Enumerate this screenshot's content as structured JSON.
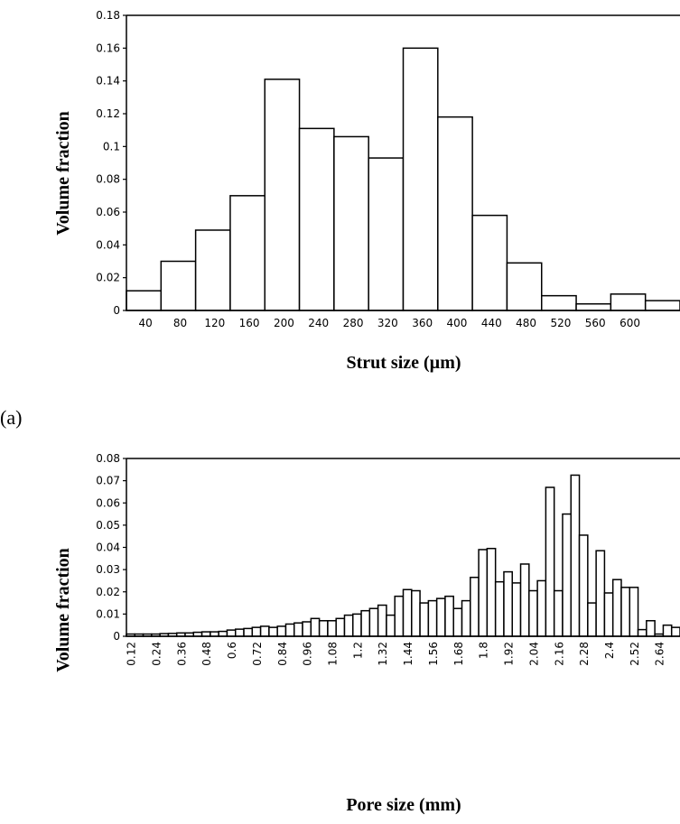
{
  "panel_labels": {
    "a": "(a)",
    "b": ""
  },
  "chart_data": [
    {
      "type": "bar",
      "title": "",
      "xlabel": "Strut size (µm)",
      "ylabel": "Volume fraction",
      "ylim": [
        0,
        0.18
      ],
      "yticks": [
        "0",
        "0.02",
        "0.04",
        "0.06",
        "0.08",
        "0.1",
        "0.12",
        "0.14",
        "0.16",
        "0.18"
      ],
      "xtick_labels": [
        "40",
        "80",
        "120",
        "160",
        "200",
        "240",
        "280",
        "320",
        "360",
        "400",
        "440",
        "480",
        "520",
        "560",
        "600"
      ],
      "bin_width": 40,
      "categories": [
        "0-40",
        "40-80",
        "80-120",
        "120-160",
        "160-200",
        "200-240",
        "240-280",
        "280-320",
        "320-360",
        "360-400",
        "400-440",
        "440-480",
        "480-520",
        "520-560",
        "560-600",
        "600-640"
      ],
      "values": [
        0.012,
        0.03,
        0.049,
        0.07,
        0.141,
        0.111,
        0.106,
        0.093,
        0.16,
        0.118,
        0.058,
        0.029,
        0.009,
        0.004,
        0.01,
        0.006
      ],
      "grid": false,
      "legend": "none"
    },
    {
      "type": "bar",
      "title": "",
      "xlabel": "Pore size (mm)",
      "ylabel": "Volume fraction",
      "ylim": [
        0,
        0.08
      ],
      "yticks": [
        "0",
        "0.01",
        "0.02",
        "0.03",
        "0.04",
        "0.05",
        "0.06",
        "0.07",
        "0.08"
      ],
      "xtick_labels": [
        "0.12",
        "0.24",
        "0.36",
        "0.48",
        "0.6",
        "0.72",
        "0.84",
        "0.96",
        "1.08",
        "1.2",
        "1.32",
        "1.44",
        "1.56",
        "1.68",
        "1.8",
        "1.92",
        "2.04",
        "2.16",
        "2.28",
        "2.4",
        "2.52",
        "2.64"
      ],
      "bin_width": 0.04,
      "x_start": 0.12,
      "values": [
        0.001,
        0.001,
        0.001,
        0.001,
        0.0012,
        0.0013,
        0.0015,
        0.0015,
        0.0018,
        0.002,
        0.002,
        0.0022,
        0.0028,
        0.0032,
        0.0035,
        0.004,
        0.0045,
        0.004,
        0.0045,
        0.0055,
        0.006,
        0.0065,
        0.008,
        0.007,
        0.007,
        0.008,
        0.0095,
        0.01,
        0.0115,
        0.0125,
        0.014,
        0.0095,
        0.018,
        0.021,
        0.0205,
        0.015,
        0.016,
        0.017,
        0.018,
        0.0125,
        0.016,
        0.0265,
        0.039,
        0.0395,
        0.0245,
        0.029,
        0.024,
        0.0325,
        0.0205,
        0.025,
        0.067,
        0.0205,
        0.055,
        0.0725,
        0.0455,
        0.015,
        0.0385,
        0.0195,
        0.0255,
        0.022,
        0.022,
        0.003,
        0.007,
        0.001,
        0.005,
        0.004
      ],
      "grid": false,
      "legend": "none"
    }
  ]
}
